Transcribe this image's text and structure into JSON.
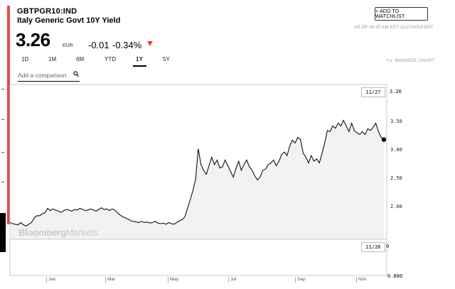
{
  "header": {
    "ticker": "GBTPGR10:IND",
    "name": "Italy Generic Govt 10Y Yield",
    "price": "3.26",
    "currency": "EUR",
    "change": "-0.01",
    "change_pct": "-0.34%",
    "direction_color": "#e24a1f"
  },
  "watchlist_button": "+ ADD TO WATCHLIST",
  "as_of": "AS OF 09:37 AM EST 11/27/2018 EDT",
  "range_tabs": [
    "1D",
    "1M",
    "6M",
    "YTD",
    "1Y",
    "5Y"
  ],
  "active_tab": "1Y",
  "minimize_label": "MINIMIZE CHART",
  "comparison": {
    "placeholder": "Add a comparison"
  },
  "watermark": {
    "brand": "Bloomberg",
    "product": "Markets"
  },
  "accent_color": "#e8484a",
  "chart_data": {
    "type": "line",
    "title": "",
    "xlabel": "",
    "ylabel": "",
    "x_tick_labels": [
      "Jan",
      "Mar",
      "May",
      "Jul",
      "Sep",
      "Nov"
    ],
    "y_tick_labels": [
      "3.50",
      "3.00",
      "2.50",
      "2.00"
    ],
    "ylim": [
      1.55,
      3.65
    ],
    "last_date_label": "11/27",
    "last_value_label": "3.26",
    "volume_date_label": "11/26",
    "volume_axis_labels": [
      "0",
      "0.000"
    ],
    "series": [
      {
        "values": [
          1.8,
          1.78,
          1.77,
          1.76,
          1.8,
          1.76,
          1.74,
          1.77,
          1.8,
          1.88,
          1.92,
          1.92,
          1.95,
          1.97,
          2.05,
          2.01,
          2.04,
          2.02,
          2.0,
          1.98,
          2.01,
          2.03,
          2.02,
          2.0,
          2.03,
          2.02,
          2.05,
          2.03,
          2.01,
          2.02,
          2.04,
          2.02,
          2.0,
          2.03,
          2.06,
          2.03,
          2.04,
          2.01,
          2.04,
          2.02,
          1.97,
          1.93,
          1.9,
          1.88,
          1.86,
          1.83,
          1.82,
          1.81,
          1.8,
          1.82,
          1.8,
          1.81,
          1.79,
          1.8,
          1.82,
          1.79,
          1.78,
          1.79,
          1.77,
          1.8,
          1.78,
          1.77,
          1.8,
          1.83,
          1.85,
          1.9,
          2.05,
          2.2,
          2.36,
          2.56,
          3.1,
          2.82,
          2.72,
          2.65,
          2.8,
          2.95,
          2.82,
          2.9,
          2.76,
          2.78,
          2.9,
          2.8,
          2.7,
          2.6,
          2.75,
          2.88,
          2.72,
          2.82,
          2.9,
          2.78,
          2.72,
          2.62,
          2.55,
          2.6,
          2.72,
          2.74,
          2.82,
          2.85,
          2.9,
          2.8,
          2.88,
          3.0,
          3.04,
          2.98,
          3.15,
          3.25,
          3.2,
          3.3,
          3.26,
          3.02,
          2.95,
          2.85,
          2.98,
          2.88,
          2.92,
          2.85,
          3.02,
          3.2,
          3.42,
          3.4,
          3.5,
          3.46,
          3.55,
          3.5,
          3.6,
          3.5,
          3.4,
          3.55,
          3.42,
          3.38,
          3.35,
          3.4,
          3.35,
          3.45,
          3.42,
          3.48,
          3.55,
          3.4,
          3.3,
          3.26
        ]
      }
    ]
  }
}
